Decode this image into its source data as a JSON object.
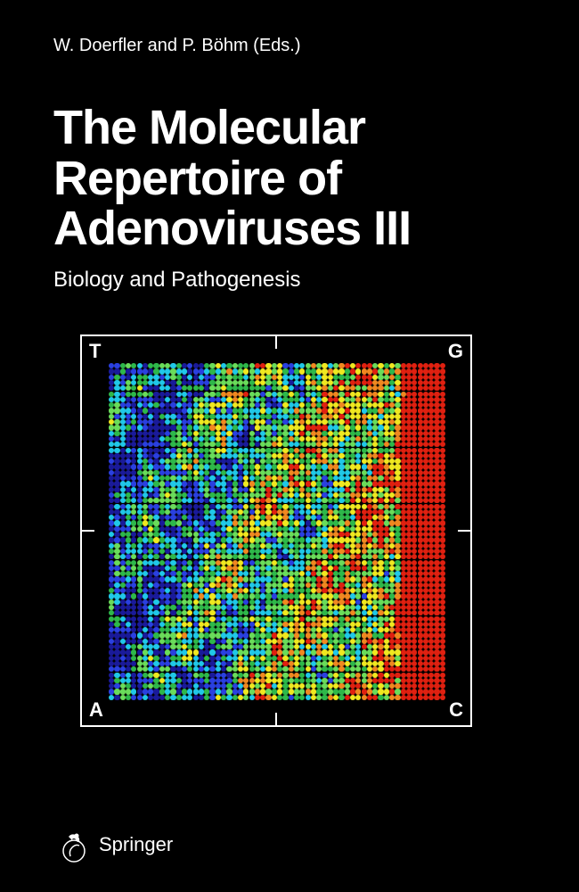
{
  "editors": "W. Doerfler and P. Böhm (Eds.)",
  "title": "The Molecular Repertoire of Adenoviruses III",
  "subtitle": "Biology and Pathogenesis",
  "corners": {
    "tl": "T",
    "tr": "G",
    "bl": "A",
    "br": "C"
  },
  "publisher": "Springer",
  "heatmap": {
    "grid": 60,
    "dot_size": 6.3,
    "background": "#2eb84a",
    "palette": {
      "darkblue": "#1a1a9a",
      "blue": "#2a40e0",
      "cyan": "#20c8e8",
      "green": "#2eb84a",
      "lightgreen": "#6adc5a",
      "yellow": "#f0e820",
      "orange": "#f08820",
      "red": "#e02010"
    }
  }
}
